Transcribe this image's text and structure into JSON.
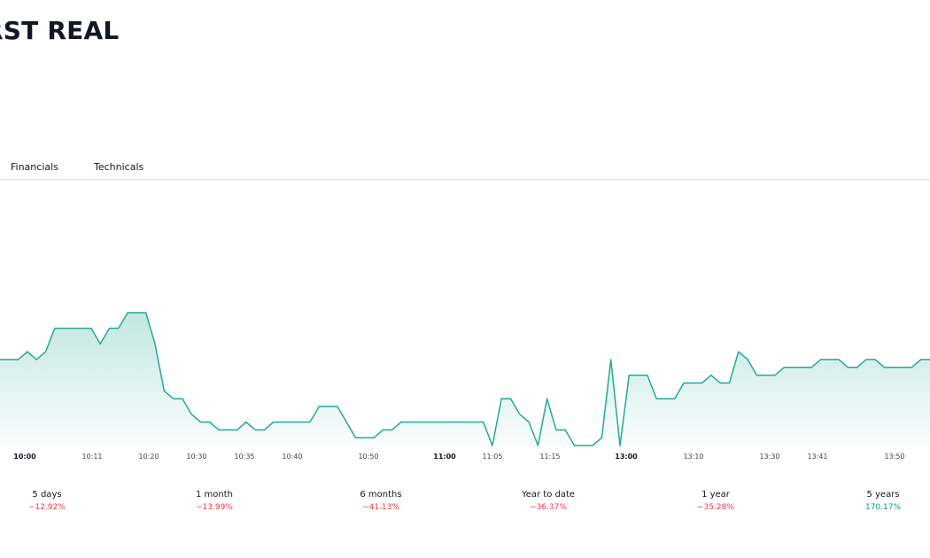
{
  "header": {
    "title": "RST REAL"
  },
  "tabs": [
    {
      "label": "Financials"
    },
    {
      "label": "Technicals"
    }
  ],
  "colors": {
    "line": "#22ab94",
    "negative": "#f23645",
    "positive": "#089981"
  },
  "chart_data": {
    "type": "area",
    "x_tick_labels": [
      "10:00",
      "10:11",
      "10:20",
      "10:30",
      "10:35",
      "10:40",
      "10:50",
      "11:00",
      "11:05",
      "11:15",
      "13:00",
      "13:10",
      "13:30",
      "13:41",
      "13:50"
    ],
    "bold_tick_labels": [
      "10:00",
      "11:00",
      "13:00"
    ],
    "values": [
      58,
      58,
      58,
      57,
      58,
      57,
      54,
      54,
      54,
      54,
      54,
      56,
      54,
      54,
      52,
      52,
      52,
      56,
      62,
      63,
      63,
      65,
      66,
      66,
      67,
      67,
      67,
      66,
      67,
      67,
      66,
      66,
      66,
      66,
      66,
      64,
      64,
      64,
      66,
      68,
      68,
      68,
      67,
      67,
      66,
      66,
      66,
      66,
      66,
      66,
      66,
      66,
      66,
      66,
      69,
      63,
      63,
      65,
      66,
      69,
      63,
      67,
      67,
      69,
      69,
      69,
      68,
      58,
      69,
      60,
      60,
      60,
      63,
      63,
      63,
      61,
      61,
      61,
      60,
      61,
      61,
      57,
      58,
      60,
      60,
      60,
      59,
      59,
      59,
      59,
      58,
      58,
      58,
      59,
      59,
      58,
      58,
      59,
      59,
      59,
      59,
      58,
      58
    ]
  },
  "periods": [
    {
      "label": "5 days",
      "change": "−12.92%",
      "positive": false
    },
    {
      "label": "1 month",
      "change": "−13.99%",
      "positive": false
    },
    {
      "label": "6 months",
      "change": "−41.13%",
      "positive": false
    },
    {
      "label": "Year to date",
      "change": "−36.37%",
      "positive": false
    },
    {
      "label": "1 year",
      "change": "−35.28%",
      "positive": false
    },
    {
      "label": "5 years",
      "change": "170.17%",
      "positive": true
    }
  ]
}
